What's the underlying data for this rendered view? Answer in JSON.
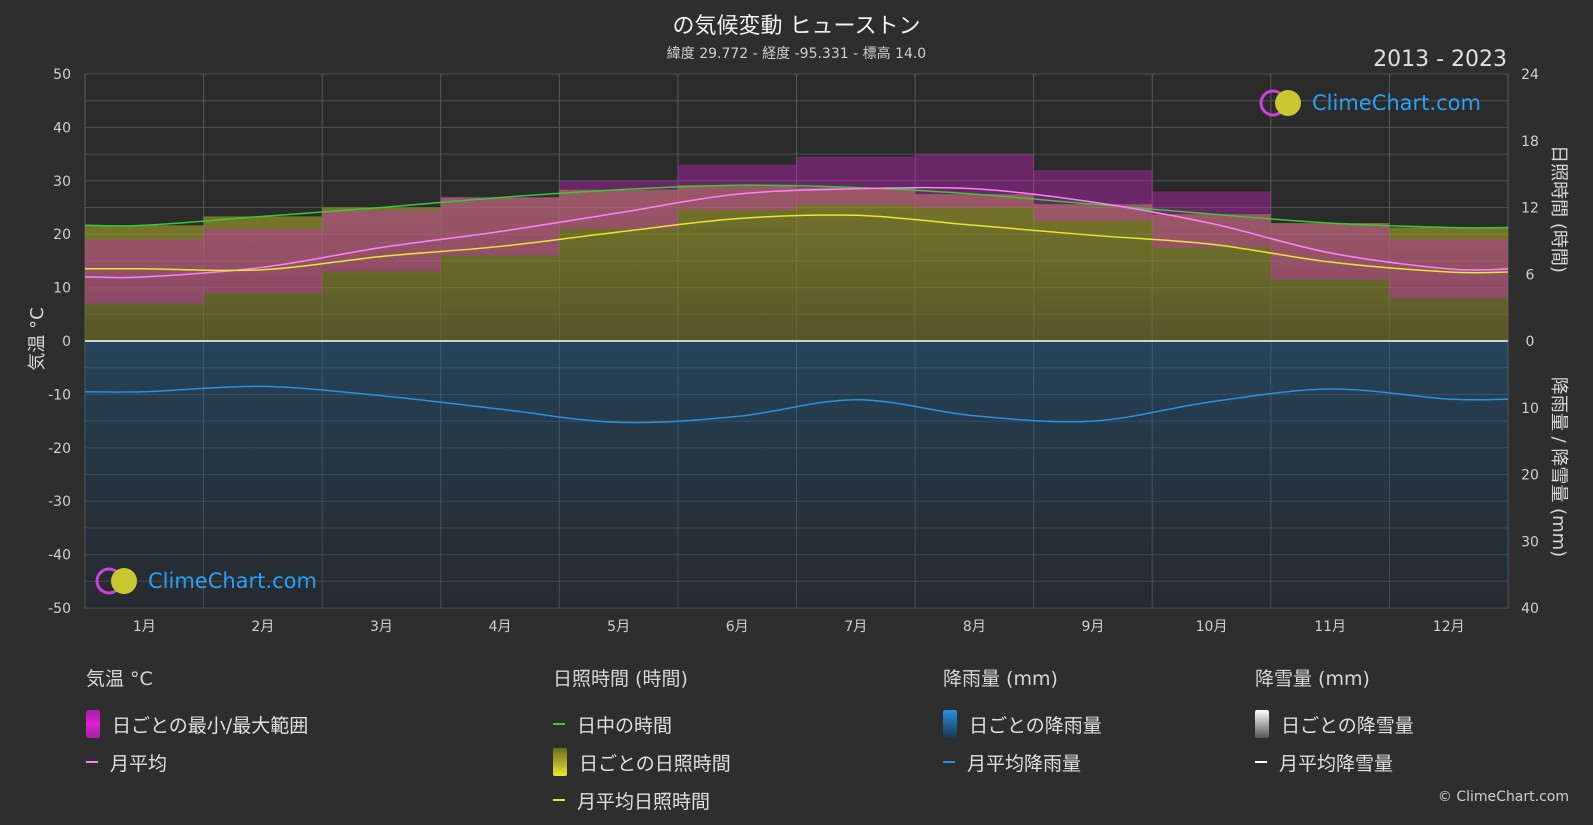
{
  "header": {
    "title": "の気候変動 ヒューストン",
    "subtitle": "緯度 29.772 - 経度 -95.331 - 標高 14.0",
    "years": "2013 - 2023"
  },
  "axes": {
    "left_label": "気温 °C",
    "right_top_label": "日照時間 (時間)",
    "right_bottom_label": "降雨量 / 降雪量 (mm)"
  },
  "brand": {
    "name": "ClimeChart.com",
    "copyright": "© ClimeChart.com"
  },
  "legend": {
    "temperature": {
      "title": "気温 °C",
      "range": "日ごとの最小/最大範囲",
      "avg": "月平均"
    },
    "sunshine": {
      "title": "日照時間 (時間)",
      "daylight": "日中の時間",
      "daily": "日ごとの日照時間",
      "avg": "月平均日照時間"
    },
    "rain": {
      "title": "降雨量 (mm)",
      "daily": "日ごとの降雨量",
      "avg": "月平均降雨量"
    },
    "snow": {
      "title": "降雪量 (mm)",
      "daily": "日ごとの降雪量",
      "avg": "月平均降雪量"
    }
  },
  "colors": {
    "temp_range": "#e020d8",
    "temp_avg": "#ff80ff",
    "daylight": "#33cc33",
    "sunshine_fill": "#9a9a2a",
    "sunshine_avg": "#e8e830",
    "rain_fill": "#1f5f8f",
    "rain_avg": "#2a90e0",
    "snow_avg": "#ffffff"
  },
  "chart_data": {
    "type": "line",
    "categories": [
      "1月",
      "2月",
      "3月",
      "4月",
      "5月",
      "6月",
      "7月",
      "8月",
      "9月",
      "10月",
      "11月",
      "12月"
    ],
    "y_left": {
      "min": -50,
      "max": 50,
      "ticks": [
        50,
        40,
        30,
        20,
        10,
        0,
        -10,
        -20,
        -30,
        -40,
        -50
      ]
    },
    "y_right_sun": {
      "min": 0,
      "max": 24,
      "ticks": [
        24,
        18,
        12,
        6,
        0
      ]
    },
    "y_right_rain": {
      "min": 0,
      "max": 40,
      "ticks": [
        0,
        10,
        20,
        30,
        40
      ]
    },
    "series": [
      {
        "name": "月平均",
        "axis": "temp",
        "values": [
          12,
          13.8,
          17.5,
          20.5,
          24,
          27.5,
          28.5,
          28.5,
          26,
          22,
          16.5,
          13.5
        ]
      },
      {
        "name": "日ごとの最小/最大範囲 (最小)",
        "axis": "temp",
        "values": [
          7,
          9,
          13,
          16,
          21,
          24.5,
          25.5,
          25,
          22.5,
          17.5,
          11.5,
          8
        ]
      },
      {
        "name": "日ごとの最小/最大範囲 (最大)",
        "axis": "temp",
        "values": [
          19,
          21,
          24.5,
          27,
          30,
          33,
          34.5,
          35,
          32,
          28,
          22,
          19
        ]
      },
      {
        "name": "日中の時間",
        "axis": "sun",
        "values": [
          10.4,
          11.2,
          12,
          12.9,
          13.6,
          14,
          13.8,
          13.2,
          12.3,
          11.4,
          10.6,
          10.2
        ]
      },
      {
        "name": "月平均日照時間",
        "axis": "sun",
        "values": [
          6.5,
          6.4,
          7.6,
          8.5,
          9.8,
          11,
          11.3,
          10.4,
          9.5,
          8.7,
          7.1,
          6.2
        ]
      },
      {
        "name": "月平均降雨量",
        "axis": "rain",
        "values": [
          7.6,
          6.8,
          8.2,
          10.2,
          12.2,
          11.3,
          8.8,
          11.2,
          12,
          9.1,
          7.2,
          8.7
        ]
      },
      {
        "name": "月平均降雪量",
        "axis": "rain",
        "values": [
          0,
          0,
          0,
          0,
          0,
          0,
          0,
          0,
          0,
          0,
          0,
          0
        ]
      }
    ]
  }
}
